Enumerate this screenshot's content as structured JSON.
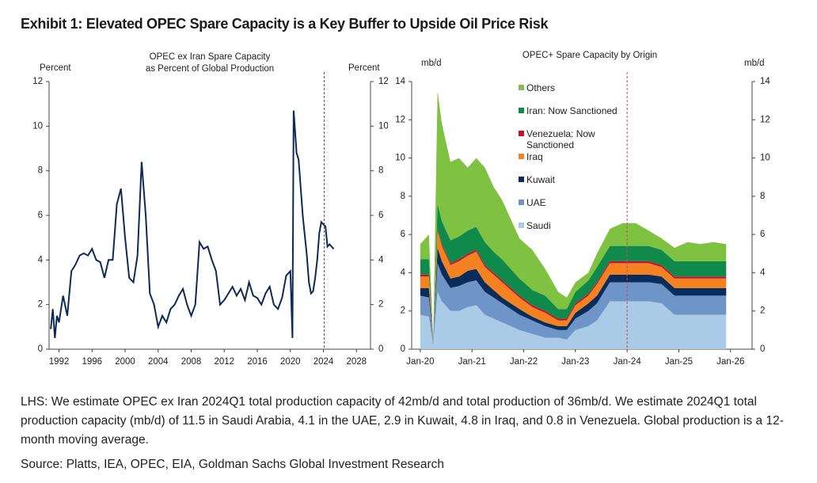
{
  "title": "Exhibit 1: Elevated OPEC Spare Capacity is a Key Buffer to Upside Oil Price Risk",
  "note": "LHS: We estimate OPEC ex Iran 2024Q1 total production capacity of 42mb/d and total production of 36mb/d. We estimate 2024Q1 total production capacity (mb/d) of 11.5 in Saudi Arabia, 4.1 in the UAE, 2.9 in Kuwait, 4.8 in Iraq, and 0.8 in Venezuela. Global production is a 12-month moving average.",
  "source": "Source: Platts, IEA, OPEC, EIA, Goldman Sachs Global Investment Research",
  "chart_data": [
    {
      "type": "line",
      "title_lines": [
        "OPEC ex Iran Spare Capacity",
        "as Percent of Global Production"
      ],
      "y_label": "Percent",
      "y2_label": "Percent",
      "color": "#0d2a57",
      "x": [
        1991.0,
        1991.25,
        1991.5,
        1991.75,
        1992,
        1992.5,
        1993,
        1993.5,
        1994,
        1994.5,
        1995,
        1995.5,
        1996,
        1996.5,
        1997,
        1997.5,
        1998,
        1998.5,
        1999,
        1999.5,
        2000,
        2000.5,
        2001,
        2001.5,
        2002,
        2002.5,
        2003,
        2003.5,
        2004,
        2004.5,
        2005,
        2005.5,
        2006,
        2006.5,
        2007,
        2007.5,
        2008,
        2008.5,
        2009,
        2009.5,
        2010,
        2010.5,
        2011,
        2011.5,
        2012,
        2012.5,
        2013,
        2013.5,
        2014,
        2014.5,
        2015,
        2015.5,
        2016,
        2016.5,
        2017,
        2017.5,
        2018,
        2018.5,
        2019,
        2019.5,
        2020,
        2020.25,
        2020.4,
        2020.75,
        2021,
        2021.5,
        2022,
        2022.25,
        2022.5,
        2022.75,
        2023,
        2023.25,
        2023.5,
        2023.75,
        2024,
        2024.25,
        2024.5,
        2024.75,
        2025,
        2025.25
      ],
      "values": [
        0.9,
        1.8,
        0.5,
        1.5,
        1.2,
        2.4,
        1.5,
        3.5,
        3.8,
        4.2,
        4.3,
        4.2,
        4.5,
        4.0,
        3.9,
        3.2,
        4.0,
        4.0,
        6.5,
        7.2,
        5.0,
        3.2,
        3.0,
        4.2,
        8.4,
        6.0,
        2.5,
        2.0,
        1.0,
        1.5,
        1.2,
        1.8,
        2.0,
        2.4,
        2.7,
        2.0,
        1.5,
        2.0,
        4.8,
        4.5,
        4.6,
        4.0,
        3.5,
        2.0,
        2.2,
        2.5,
        2.8,
        2.4,
        2.7,
        2.2,
        3.0,
        2.4,
        2.3,
        2.0,
        2.5,
        2.8,
        2.0,
        1.8,
        2.3,
        3.3,
        3.5,
        0.5,
        10.7,
        8.8,
        8.5,
        6.0,
        4.2,
        3.0,
        2.5,
        2.6,
        3.2,
        4.0,
        5.2,
        5.7,
        5.6,
        5.5,
        4.6,
        4.7,
        4.6,
        4.5
      ],
      "xlim": [
        1990.8,
        2029.7
      ],
      "xticks": [
        1992,
        1996,
        2000,
        2004,
        2008,
        2012,
        2016,
        2020,
        2024,
        2028
      ],
      "ylim": [
        0,
        12
      ],
      "yticks": [
        0,
        2,
        4,
        6,
        8,
        10,
        12
      ],
      "reference_line_x": 2024.1,
      "reference_line_color": "#555555"
    },
    {
      "type": "stacked_area",
      "title": "OPEC+ Spare Capacity by Origin",
      "y_label": "mb/d",
      "y2_label": "mb/d",
      "x": [
        "2020-01",
        "2020-03",
        "2020-04",
        "2020-05",
        "2020-06",
        "2020-08",
        "2020-10",
        "2020-12",
        "2021-02",
        "2021-04",
        "2021-06",
        "2021-08",
        "2021-10",
        "2021-12",
        "2022-03",
        "2022-06",
        "2022-09",
        "2022-11",
        "2023-01",
        "2023-04",
        "2023-06",
        "2023-09",
        "2023-12",
        "2024-03",
        "2024-06",
        "2024-09",
        "2024-12",
        "2025-03",
        "2025-06",
        "2025-09",
        "2025-12"
      ],
      "series": [
        {
          "name": "Saudi",
          "color": "#a9cbe8",
          "values": [
            1.8,
            1.7,
            0.2,
            3.0,
            2.5,
            2.0,
            2.0,
            2.2,
            2.3,
            1.8,
            1.6,
            1.4,
            1.2,
            1.0,
            0.8,
            0.6,
            0.6,
            0.5,
            1.0,
            1.2,
            1.5,
            2.5,
            2.5,
            2.5,
            2.5,
            2.4,
            1.8,
            1.8,
            1.8,
            1.8,
            1.8
          ]
        },
        {
          "name": "UAE",
          "color": "#6f95c8",
          "values": [
            1.0,
            1.0,
            0.1,
            1.5,
            1.4,
            1.2,
            1.3,
            1.3,
            1.3,
            1.2,
            1.1,
            1.0,
            0.9,
            0.8,
            0.7,
            0.6,
            0.4,
            0.5,
            0.6,
            0.8,
            0.9,
            1.0,
            1.0,
            1.0,
            1.0,
            1.0,
            1.0,
            1.0,
            1.0,
            1.0,
            1.0
          ]
        },
        {
          "name": "Kuwait",
          "color": "#0a2c5a",
          "values": [
            0.4,
            0.5,
            0.05,
            0.8,
            0.7,
            0.5,
            0.5,
            0.6,
            0.6,
            0.5,
            0.4,
            0.3,
            0.3,
            0.3,
            0.2,
            0.2,
            0.2,
            0.2,
            0.3,
            0.4,
            0.4,
            0.4,
            0.4,
            0.4,
            0.4,
            0.4,
            0.4,
            0.4,
            0.4,
            0.4,
            0.4
          ]
        },
        {
          "name": "Iraq",
          "color": "#f58220",
          "values": [
            0.6,
            0.6,
            0.05,
            0.9,
            0.8,
            0.7,
            0.8,
            0.8,
            0.9,
            0.8,
            0.8,
            0.8,
            0.7,
            0.6,
            0.5,
            0.5,
            0.3,
            0.3,
            0.4,
            0.4,
            0.6,
            0.6,
            0.6,
            0.6,
            0.6,
            0.5,
            0.5,
            0.5,
            0.5,
            0.5,
            0.5
          ]
        },
        {
          "name": "Venezuela: Now Sanctioned",
          "color": "#c8102e",
          "values": [
            0.1,
            0.1,
            0,
            0.1,
            0.1,
            0.1,
            0.1,
            0.1,
            0.1,
            0.1,
            0.1,
            0.1,
            0.1,
            0.1,
            0.1,
            0.1,
            0.1,
            0.1,
            0.1,
            0.1,
            0.1,
            0.1,
            0.1,
            0.1,
            0.1,
            0.1,
            0.1,
            0.1,
            0.1,
            0.1,
            0.1
          ]
        },
        {
          "name": "Iran: Now Sanctioned",
          "color": "#0f8a4a",
          "values": [
            0.8,
            0.8,
            0.05,
            1.3,
            1.2,
            1.2,
            1.2,
            1.2,
            1.2,
            1.2,
            1.1,
            1.1,
            1.0,
            0.9,
            0.8,
            0.8,
            0.5,
            0.5,
            0.6,
            0.7,
            0.8,
            0.8,
            0.8,
            0.8,
            0.8,
            0.8,
            0.8,
            0.8,
            0.8,
            0.8,
            0.8
          ]
        },
        {
          "name": "Others",
          "color": "#7fc241",
          "values": [
            0.8,
            1.3,
            0.05,
            5.9,
            5.1,
            4.1,
            4.1,
            3.3,
            3.6,
            3.9,
            3.4,
            3.1,
            2.6,
            2.1,
            2.1,
            1.4,
            0.9,
            0.6,
            0.5,
            0.4,
            0.7,
            0.9,
            1.2,
            1.2,
            0.8,
            0.6,
            0.7,
            1.0,
            0.9,
            1.0,
            0.9
          ]
        }
      ],
      "xlim": [
        "2019-11",
        "2026-06"
      ],
      "xticks": [
        {
          "value": "2020-01",
          "label": "Jan-20"
        },
        {
          "value": "2021-01",
          "label": "Jan-21"
        },
        {
          "value": "2022-01",
          "label": "Jan-22"
        },
        {
          "value": "2023-01",
          "label": "Jan-23"
        },
        {
          "value": "2024-01",
          "label": "Jan-24"
        },
        {
          "value": "2025-01",
          "label": "Jan-25"
        },
        {
          "value": "2026-01",
          "label": "Jan-26"
        }
      ],
      "ylim": [
        0,
        14
      ],
      "yticks": [
        0,
        2,
        4,
        6,
        8,
        10,
        12,
        14
      ],
      "reference_line_x": "2024-01",
      "reference_line_color": "#c0504d"
    }
  ]
}
